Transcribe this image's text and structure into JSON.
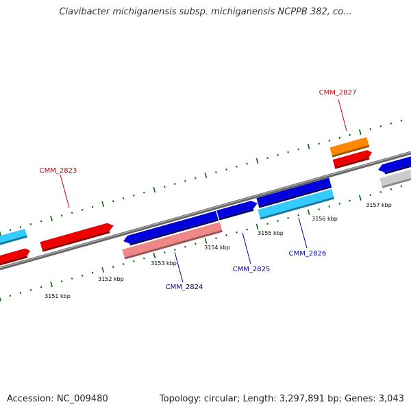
{
  "title": "Clavibacter michiganensis subsp. michiganensis NCPPB 382, co...",
  "footer": {
    "accession": "Accession: NC_009480",
    "topology": "Topology: circular; Length: 3,297,891 bp; Genes: 3,043"
  },
  "colors": {
    "forward_label": "#cc0000",
    "reverse_label": "#000099",
    "backbone": "#808080",
    "tick": "#006600",
    "blue": "#0000dd",
    "cyan": "#33ccff",
    "red": "#ee0000",
    "pink": "#ee8888",
    "orange": "#ff8800",
    "gray": "#cccccc"
  },
  "scale_labels": [
    "3151 kbp",
    "3152 kbp",
    "3153 kbp",
    "3154 kbp",
    "3155 kbp",
    "3156 kbp",
    "3157 kbp"
  ],
  "gene_labels": [
    "CMM_2823",
    "CMM_2824",
    "CMM_2825",
    "CMM_2826",
    "CMM_2827"
  ]
}
